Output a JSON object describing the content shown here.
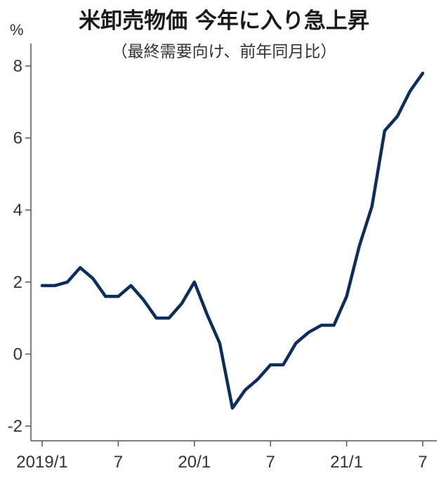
{
  "chart_data": {
    "type": "line",
    "title": "米卸売物価 今年に入り急上昇",
    "subtitle": "（最終需要向け、前年同月比）",
    "yunit": "%",
    "ylim": [
      -2.4,
      8.4
    ],
    "yticks": [
      -2,
      0,
      2,
      4,
      6,
      8
    ],
    "ytick_labels": [
      "-2",
      "0",
      "2",
      "4",
      "6",
      "8"
    ],
    "x_ticks": [
      {
        "index": 0,
        "label": "2019/1"
      },
      {
        "index": 6,
        "label": "7"
      },
      {
        "index": 12,
        "label": "20/1"
      },
      {
        "index": 18,
        "label": "7"
      },
      {
        "index": 24,
        "label": "21/1"
      },
      {
        "index": 30,
        "label": "7"
      }
    ],
    "line_color": "#0d2d5c",
    "series": [
      {
        "values": [
          1.9,
          1.9,
          2.0,
          2.4,
          2.1,
          1.6,
          1.6,
          1.9,
          1.5,
          1.0,
          1.0,
          1.4,
          2.0,
          1.1,
          0.3,
          -1.5,
          -1.0,
          -0.7,
          -0.3,
          -0.3,
          0.3,
          0.6,
          0.8,
          0.8,
          1.6,
          3.0,
          4.1,
          6.2,
          6.6,
          7.3,
          7.8
        ]
      }
    ],
    "grid": false
  }
}
